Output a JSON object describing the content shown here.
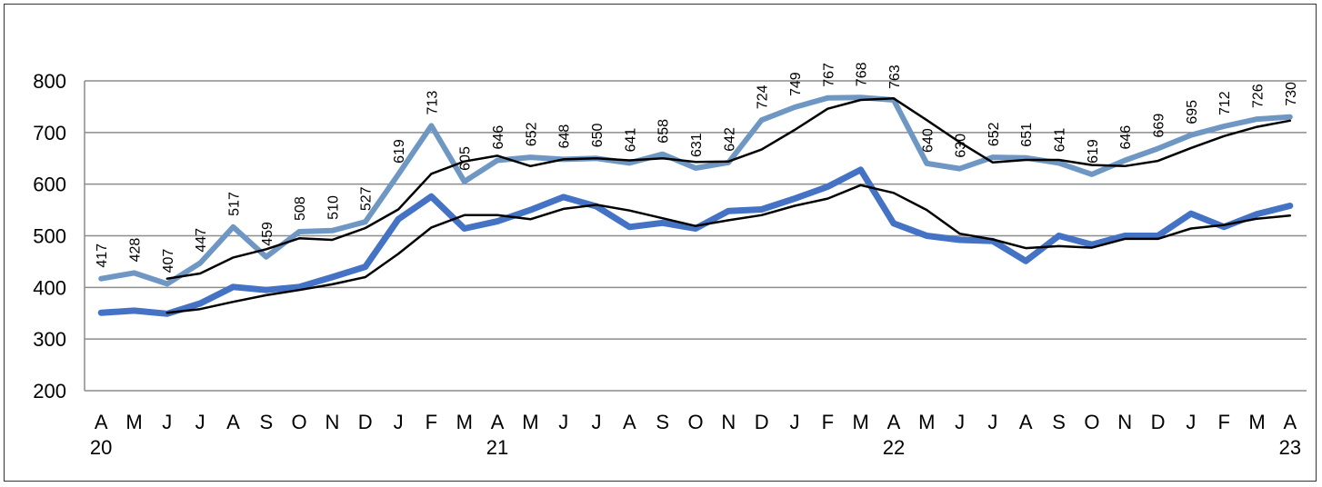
{
  "chart_data": {
    "type": "line",
    "title": "",
    "xlabel": "",
    "ylabel": "",
    "ylim": [
      200,
      800
    ],
    "yticks": [
      200,
      300,
      400,
      500,
      600,
      700,
      800
    ],
    "grid": "horizontal",
    "legend": "none",
    "categories": [
      "A",
      "M",
      "J",
      "J",
      "A",
      "S",
      "O",
      "N",
      "D",
      "J",
      "F",
      "M",
      "A",
      "M",
      "J",
      "J",
      "A",
      "S",
      "O",
      "N",
      "D",
      "J",
      "F",
      "M",
      "A",
      "M",
      "J",
      "J",
      "A",
      "S",
      "O",
      "N",
      "D",
      "J",
      "F",
      "M",
      "A"
    ],
    "year_labels": [
      {
        "index": 0,
        "label": "20"
      },
      {
        "index": 12,
        "label": "21"
      },
      {
        "index": 24,
        "label": "22"
      },
      {
        "index": 36,
        "label": "23"
      }
    ],
    "series": [
      {
        "color": "#6f97c4",
        "width": 6,
        "show_labels": true,
        "values": [
          417,
          428,
          407,
          447,
          517,
          459,
          508,
          510,
          527,
          619,
          713,
          605,
          646,
          652,
          648,
          650,
          641,
          658,
          631,
          642,
          724,
          749,
          767,
          768,
          763,
          640,
          630,
          652,
          651,
          641,
          619,
          646,
          669,
          695,
          712,
          726,
          730
        ]
      },
      {
        "color": "#000000",
        "width": 2.5,
        "show_labels": false,
        "values": [
          null,
          null,
          417,
          427,
          458,
          474,
          495,
          492,
          515,
          551,
          620,
          644,
          655,
          635,
          648,
          650,
          646,
          650,
          643,
          644,
          667,
          705,
          746,
          763,
          766,
          724,
          681,
          642,
          647,
          647,
          637,
          635,
          645,
          670,
          693,
          711,
          723
        ]
      },
      {
        "color": "#4472c4",
        "width": 7,
        "show_labels": false,
        "values": [
          351,
          355,
          349,
          369,
          401,
          395,
          401,
          420,
          440,
          532,
          576,
          514,
          528,
          550,
          575,
          557,
          517,
          525,
          514,
          548,
          551,
          572,
          595,
          628,
          524,
          500,
          492,
          490,
          451,
          500,
          483,
          500,
          500,
          543,
          517,
          542,
          558
        ]
      },
      {
        "color": "#000000",
        "width": 2.5,
        "show_labels": false,
        "values": [
          null,
          null,
          351,
          358,
          372,
          385,
          395,
          406,
          420,
          465,
          516,
          540,
          540,
          532,
          552,
          560,
          549,
          534,
          519,
          530,
          540,
          558,
          572,
          598,
          583,
          550,
          504,
          493,
          476,
          480,
          477,
          494,
          494,
          514,
          521,
          533,
          539
        ]
      }
    ]
  }
}
